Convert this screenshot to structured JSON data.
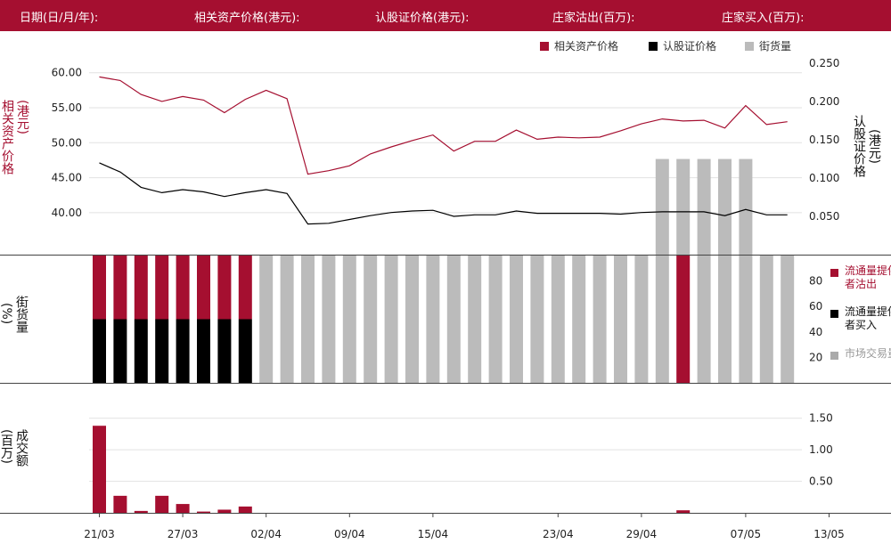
{
  "header": {
    "date_label": "日期(日/月/年):",
    "asset_price_label": "相关资产价格(港元):",
    "warrant_price_label": "认股证价格(港元):",
    "issuer_sell_label": "庄家沽出(百万):",
    "issuer_buy_label": "庄家买入(百万):"
  },
  "legend": {
    "asset": "相关资产价格",
    "warrant": "认股证价格",
    "outstanding": "街货量"
  },
  "labels": {
    "left_axis_main": "相关资产价格",
    "left_axis_main_unit": "(港元)",
    "right_axis_main": "认股证价格",
    "right_axis_main_unit": "(港元)",
    "left_axis_mid": "街货量",
    "left_axis_mid_unit": "(%)",
    "left_axis_bottom": "成交额",
    "left_axis_bottom_unit": "(百万)",
    "mid_legend_sell": "流通量提供者沽出",
    "mid_legend_buy": "流通量提供者买入",
    "mid_legend_market": "市场交易量"
  },
  "colors": {
    "header_bg": "#a50f30",
    "asset": "#a50f30",
    "warrant": "#000000",
    "outstanding": "#bbbbbb",
    "sell": "#a50f30",
    "buy": "#000000"
  },
  "chart_data": [
    {
      "type": "line",
      "name": "price-chart",
      "x": [
        "21/03",
        "22/03",
        "25/03",
        "26/03",
        "27/03",
        "28/03",
        "29/03",
        "01/04",
        "02/04",
        "03/04",
        "05/04",
        "08/04",
        "09/04",
        "10/04",
        "11/04",
        "12/04",
        "15/04",
        "16/04",
        "17/04",
        "18/04",
        "19/04",
        "22/04",
        "23/04",
        "24/04",
        "25/04",
        "26/04",
        "29/04",
        "30/04",
        "02/05",
        "03/05",
        "06/05",
        "07/05",
        "08/05",
        "09/05",
        "10/05",
        "13/05",
        "14/05"
      ],
      "xticks": [
        "21/03",
        "27/03",
        "02/04",
        "09/04",
        "15/04",
        "23/04",
        "29/04",
        "07/05",
        "13/05"
      ],
      "series": [
        {
          "name": "相关资产价格",
          "axis": "left",
          "values": [
            59.4,
            58.9,
            56.9,
            55.9,
            56.6,
            56.1,
            54.3,
            56.2,
            57.5,
            56.3,
            45.5,
            46.0,
            46.7,
            48.4,
            49.4,
            50.3,
            51.1,
            48.8,
            50.2,
            50.2,
            51.8,
            50.5,
            50.8,
            50.7,
            50.8,
            51.7,
            52.7,
            53.4,
            53.1,
            53.2,
            52.1,
            55.3,
            52.6,
            53.0,
            null,
            null,
            null
          ]
        },
        {
          "name": "认股证价格",
          "axis": "right",
          "values": [
            0.12,
            0.108,
            0.088,
            0.081,
            0.085,
            0.082,
            0.076,
            0.081,
            0.085,
            0.08,
            0.04,
            0.041,
            0.046,
            0.051,
            0.055,
            0.057,
            0.058,
            0.05,
            0.052,
            0.052,
            0.057,
            0.054,
            0.054,
            0.054,
            0.054,
            0.053,
            0.055,
            0.056,
            0.056,
            0.056,
            0.051,
            0.059,
            0.052,
            0.052,
            null,
            null,
            null
          ]
        },
        {
          "name": "街货量",
          "type": "bar",
          "axis": "right",
          "values": [
            null,
            null,
            null,
            null,
            null,
            null,
            null,
            null,
            null,
            null,
            null,
            null,
            null,
            null,
            null,
            null,
            null,
            null,
            null,
            null,
            null,
            null,
            null,
            null,
            null,
            null,
            null,
            0.125,
            0.125,
            0.125,
            0.125,
            0.125,
            null,
            null,
            null,
            null,
            null
          ]
        }
      ],
      "ylim_left": [
        34,
        62
      ],
      "yticks_left": [
        "60.00",
        "55.00",
        "50.00",
        "45.00",
        "40.00"
      ],
      "ylim_right": [
        0,
        0.256
      ],
      "yticks_right": [
        "0.250",
        "0.200",
        "0.150",
        "0.100",
        "0.050"
      ]
    },
    {
      "type": "bar",
      "name": "outstanding-chart",
      "series": [
        {
          "name": "流通量提供者沽出",
          "values": [
            50,
            50,
            50,
            50,
            50,
            50,
            50,
            50,
            0,
            0,
            0,
            0,
            0,
            0,
            0,
            0,
            0,
            0,
            0,
            0,
            0,
            0,
            0,
            0,
            0,
            0,
            0,
            0,
            100,
            0,
            0,
            0,
            0,
            0
          ]
        },
        {
          "name": "流通量提供者买入",
          "values": [
            50,
            50,
            50,
            50,
            50,
            50,
            50,
            50,
            0,
            0,
            0,
            0,
            0,
            0,
            0,
            0,
            0,
            0,
            0,
            0,
            0,
            0,
            0,
            0,
            0,
            0,
            0,
            0,
            0,
            0,
            0,
            0,
            0,
            0
          ]
        },
        {
          "name": "市场交易量",
          "values": [
            0,
            0,
            0,
            0,
            0,
            0,
            0,
            0,
            100,
            100,
            100,
            100,
            100,
            100,
            100,
            100,
            100,
            100,
            100,
            100,
            100,
            100,
            100,
            100,
            100,
            100,
            100,
            100,
            0,
            100,
            100,
            100,
            100,
            100
          ]
        }
      ],
      "ylim": [
        0,
        100
      ],
      "yticks": [
        "80",
        "60",
        "40",
        "20"
      ]
    },
    {
      "type": "bar",
      "name": "turnover-chart",
      "values": [
        1.38,
        0.27,
        0.03,
        0.27,
        0.14,
        0.02,
        0.05,
        0.1,
        0,
        0,
        0,
        0,
        0,
        0,
        0,
        0,
        0,
        0,
        0,
        0,
        0,
        0,
        0,
        0,
        0,
        0,
        0,
        0,
        0.04,
        0,
        0,
        0,
        0,
        0
      ],
      "ylim": [
        0,
        1.75
      ],
      "yticks": [
        "1.50",
        "1.00",
        "0.50"
      ]
    }
  ]
}
